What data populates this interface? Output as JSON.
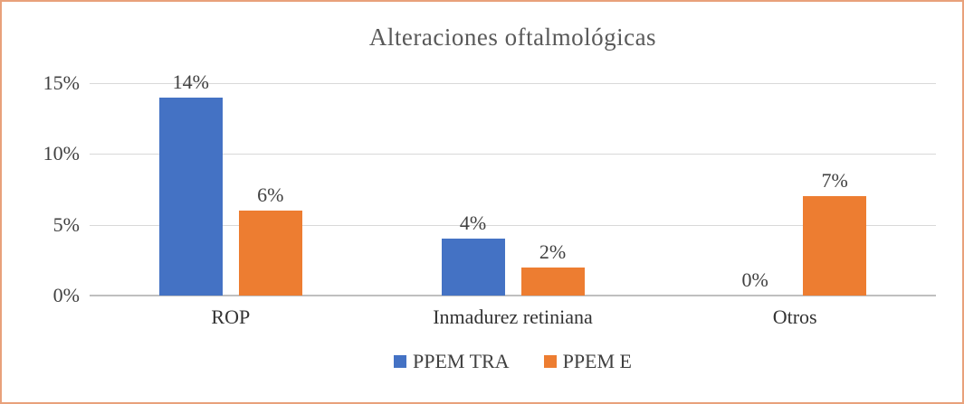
{
  "chart_data": {
    "type": "bar",
    "title": "Alteraciones oftalmológicas",
    "categories": [
      "ROP",
      "Inmadurez retiniana",
      "Otros"
    ],
    "series": [
      {
        "name": "PPEM TRA",
        "color": "#4472C4",
        "values": [
          14,
          4,
          0
        ],
        "labels": [
          "14%",
          "4%",
          "0%"
        ]
      },
      {
        "name": "PPEM E",
        "color": "#ED7D31",
        "values": [
          6,
          2,
          7
        ],
        "labels": [
          "6%",
          "2%",
          "7%"
        ]
      }
    ],
    "y_axis": {
      "min": 0,
      "max": 15,
      "ticks": [
        {
          "value": 15,
          "label": "15%"
        },
        {
          "value": 10,
          "label": "10%"
        },
        {
          "value": 5,
          "label": "5%"
        },
        {
          "value": 0,
          "label": "0%"
        }
      ]
    },
    "grid": true,
    "legend_position": "bottom",
    "frame_border_color": "#E8A17B"
  }
}
